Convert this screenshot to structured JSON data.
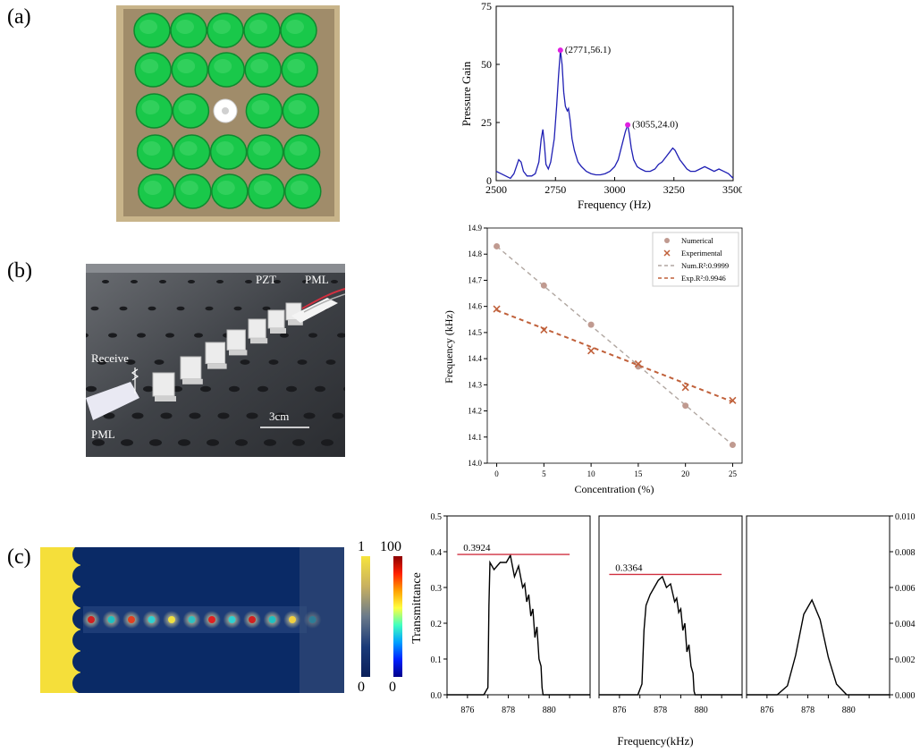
{
  "panel_labels": [
    "(a)",
    "(b)",
    "(c)"
  ],
  "photo_b": {
    "labels": [
      "PZT",
      "PML",
      "Receive",
      "PML",
      "3cm"
    ]
  },
  "colorbar": {
    "gray_max": "1",
    "gray_min": "0",
    "jet_max": "100",
    "jet_min": "0"
  },
  "chart_data": [
    {
      "type": "line",
      "id": "pressure_gain",
      "xlabel": "Frequency (Hz)",
      "ylabel": "Pressure Gain",
      "xlim": [
        2500,
        3500
      ],
      "ylim": [
        0,
        75
      ],
      "xticks": [
        2500,
        2750,
        3000,
        3250,
        3500
      ],
      "yticks": [
        0,
        25,
        50,
        75
      ],
      "color": "#1f1fb4",
      "series": [
        {
          "x": [
            2500,
            2520,
            2540,
            2560,
            2575,
            2585,
            2595,
            2605,
            2615,
            2630,
            2650,
            2665,
            2680,
            2690,
            2697,
            2703,
            2710,
            2720,
            2730,
            2745,
            2755,
            2763,
            2771,
            2778,
            2785,
            2792,
            2800,
            2805,
            2812,
            2820,
            2830,
            2845,
            2860,
            2880,
            2900,
            2920,
            2940,
            2960,
            2980,
            3000,
            3015,
            3025,
            3035,
            3045,
            3055,
            3062,
            3070,
            3080,
            3095,
            3110,
            3130,
            3150,
            3170,
            3185,
            3200,
            3215,
            3230,
            3245,
            3255,
            3265,
            3275,
            3290,
            3305,
            3320,
            3340,
            3360,
            3380,
            3400,
            3420,
            3440,
            3460,
            3480,
            3500
          ],
          "y": [
            4,
            3,
            2,
            1,
            3,
            6,
            9,
            8,
            4,
            2,
            2,
            3,
            8,
            18,
            22,
            16,
            7,
            5,
            8,
            18,
            32,
            45,
            56.1,
            50,
            38,
            32,
            30,
            31,
            26,
            18,
            13,
            8,
            6,
            4,
            3,
            2.5,
            2.5,
            3,
            4,
            6,
            9,
            13,
            17,
            21,
            24,
            20,
            14,
            9,
            6,
            5,
            4,
            4,
            5,
            7,
            8,
            10,
            12,
            14,
            13,
            11,
            9,
            7,
            5,
            4,
            4,
            5,
            6,
            5,
            4,
            5,
            4,
            3,
            1
          ]
        }
      ],
      "annotations": [
        {
          "label": "(2771,56.1)",
          "x": 2771,
          "y": 56.1,
          "color": "#e020e0"
        },
        {
          "label": "(3055,24.0)",
          "x": 3055,
          "y": 24.0,
          "color": "#e020e0"
        }
      ]
    },
    {
      "type": "scatter",
      "id": "frequency_concentration",
      "xlabel": "Concentration (%)",
      "ylabel": "Frequency (kHz)",
      "xlim": [
        -1,
        26
      ],
      "ylim": [
        14.0,
        14.9
      ],
      "xticks": [
        0,
        5,
        10,
        15,
        20,
        25
      ],
      "yticks": [
        14.0,
        14.1,
        14.2,
        14.3,
        14.4,
        14.5,
        14.6,
        14.7,
        14.8,
        14.9
      ],
      "series": [
        {
          "name": "Numerical",
          "marker": "circle",
          "color": "#c09a90",
          "x": [
            0,
            5,
            10,
            15,
            20,
            25
          ],
          "y": [
            14.83,
            14.68,
            14.53,
            14.37,
            14.22,
            14.07
          ]
        },
        {
          "name": "Experimental",
          "marker": "x",
          "color": "#c0603a",
          "x": [
            0,
            5,
            10,
            15,
            20,
            25
          ],
          "y": [
            14.59,
            14.51,
            14.43,
            14.38,
            14.29,
            14.24
          ]
        },
        {
          "name": "Num.R²:0.9999",
          "style": "dashed",
          "color": "#b0a6a0",
          "x": [
            0,
            25
          ],
          "y": [
            14.83,
            14.07
          ]
        },
        {
          "name": "Exp.R²:0.9946",
          "style": "dashed",
          "color": "#c0603a",
          "x": [
            0,
            25
          ],
          "y": [
            14.585,
            14.235
          ]
        }
      ],
      "legend": "top-right"
    },
    {
      "type": "line",
      "id": "transmittance",
      "ylabel": "Transmittance",
      "xlabel": "Frequency(kHz)",
      "ylim_left": [
        0,
        0.5
      ],
      "yticks_left": [
        "0.0",
        "0.1",
        "0.2",
        "0.3",
        "0.4",
        "0.5"
      ],
      "ylim_right": [
        0,
        0.01
      ],
      "yticks_right": [
        "0.000",
        "0.002",
        "0.004",
        "0.006",
        "0.008",
        "0.010"
      ],
      "xlim": [
        875,
        882
      ],
      "xticks": [
        876,
        878,
        880
      ],
      "panels": [
        {
          "reference_label": "0.3924",
          "reference": 0.3924,
          "x": [
            875,
            876.8,
            877.0,
            877.05,
            877.1,
            877.3,
            877.6,
            877.9,
            878.1,
            878.3,
            878.5,
            878.7,
            878.8,
            878.9,
            879.0,
            879.1,
            879.2,
            879.3,
            879.4,
            879.5,
            879.6,
            879.65,
            879.7,
            882
          ],
          "y": [
            0,
            0,
            0.02,
            0.25,
            0.37,
            0.35,
            0.37,
            0.37,
            0.39,
            0.33,
            0.36,
            0.3,
            0.31,
            0.26,
            0.28,
            0.22,
            0.24,
            0.16,
            0.19,
            0.1,
            0.08,
            0.02,
            0,
            0
          ]
        },
        {
          "reference_label": "0.3364",
          "reference": 0.3364,
          "x": [
            875,
            876.9,
            877.1,
            877.2,
            877.3,
            877.5,
            877.7,
            877.9,
            878.1,
            878.3,
            878.5,
            878.7,
            878.8,
            878.9,
            879.0,
            879.1,
            879.2,
            879.3,
            879.4,
            879.5,
            879.6,
            879.65,
            879.7,
            882
          ],
          "y": [
            0,
            0,
            0.03,
            0.18,
            0.25,
            0.28,
            0.3,
            0.32,
            0.33,
            0.3,
            0.31,
            0.26,
            0.27,
            0.23,
            0.24,
            0.18,
            0.2,
            0.12,
            0.14,
            0.08,
            0.06,
            0.01,
            0,
            0
          ]
        },
        {
          "axis": "right",
          "x": [
            875,
            876.5,
            877,
            877.4,
            877.8,
            878.2,
            878.6,
            879,
            879.4,
            879.9,
            882
          ],
          "y": [
            0,
            0,
            0.0005,
            0.0022,
            0.0045,
            0.0053,
            0.0042,
            0.0021,
            0.0006,
            0,
            0
          ]
        }
      ]
    }
  ]
}
